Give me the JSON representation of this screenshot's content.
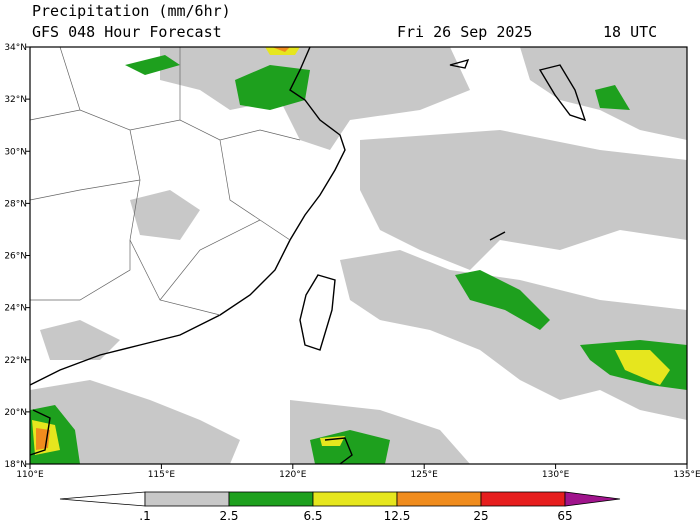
{
  "header": {
    "title": "Precipitation (mm/6hr)",
    "subtitle": "GFS 048 Hour Forecast",
    "date": "Fri 26 Sep 2025",
    "time": "18 UTC"
  },
  "map": {
    "lon_range": [
      110,
      135
    ],
    "lat_range": [
      18,
      34
    ],
    "lon_ticks": [
      {
        "value": 110,
        "label": "110°E"
      },
      {
        "value": 115,
        "label": "115°E"
      },
      {
        "value": 120,
        "label": "120°E"
      },
      {
        "value": 125,
        "label": "125°E"
      },
      {
        "value": 130,
        "label": "130°E"
      },
      {
        "value": 135,
        "label": "135°E"
      }
    ],
    "lat_ticks": [
      {
        "value": 18,
        "label": "18°N"
      },
      {
        "value": 20,
        "label": "20°N"
      },
      {
        "value": 22,
        "label": "22°N"
      },
      {
        "value": 24,
        "label": "24°N"
      },
      {
        "value": 26,
        "label": "26°N"
      },
      {
        "value": 28,
        "label": "28°N"
      },
      {
        "value": 30,
        "label": "30°N"
      },
      {
        "value": 32,
        "label": "32°N"
      },
      {
        "value": 34,
        "label": "34°N"
      }
    ]
  },
  "colorbar": {
    "ticks": [
      {
        "value": 0.1,
        "label": ".1"
      },
      2.5,
      6.5,
      12.5,
      25,
      65
    ],
    "colors": [
      "#ffffff",
      "#c8c8c8",
      "#1ea01e",
      "#e6e61e",
      "#f08c1e",
      "#e61e1e",
      "#a0148c"
    ]
  }
}
